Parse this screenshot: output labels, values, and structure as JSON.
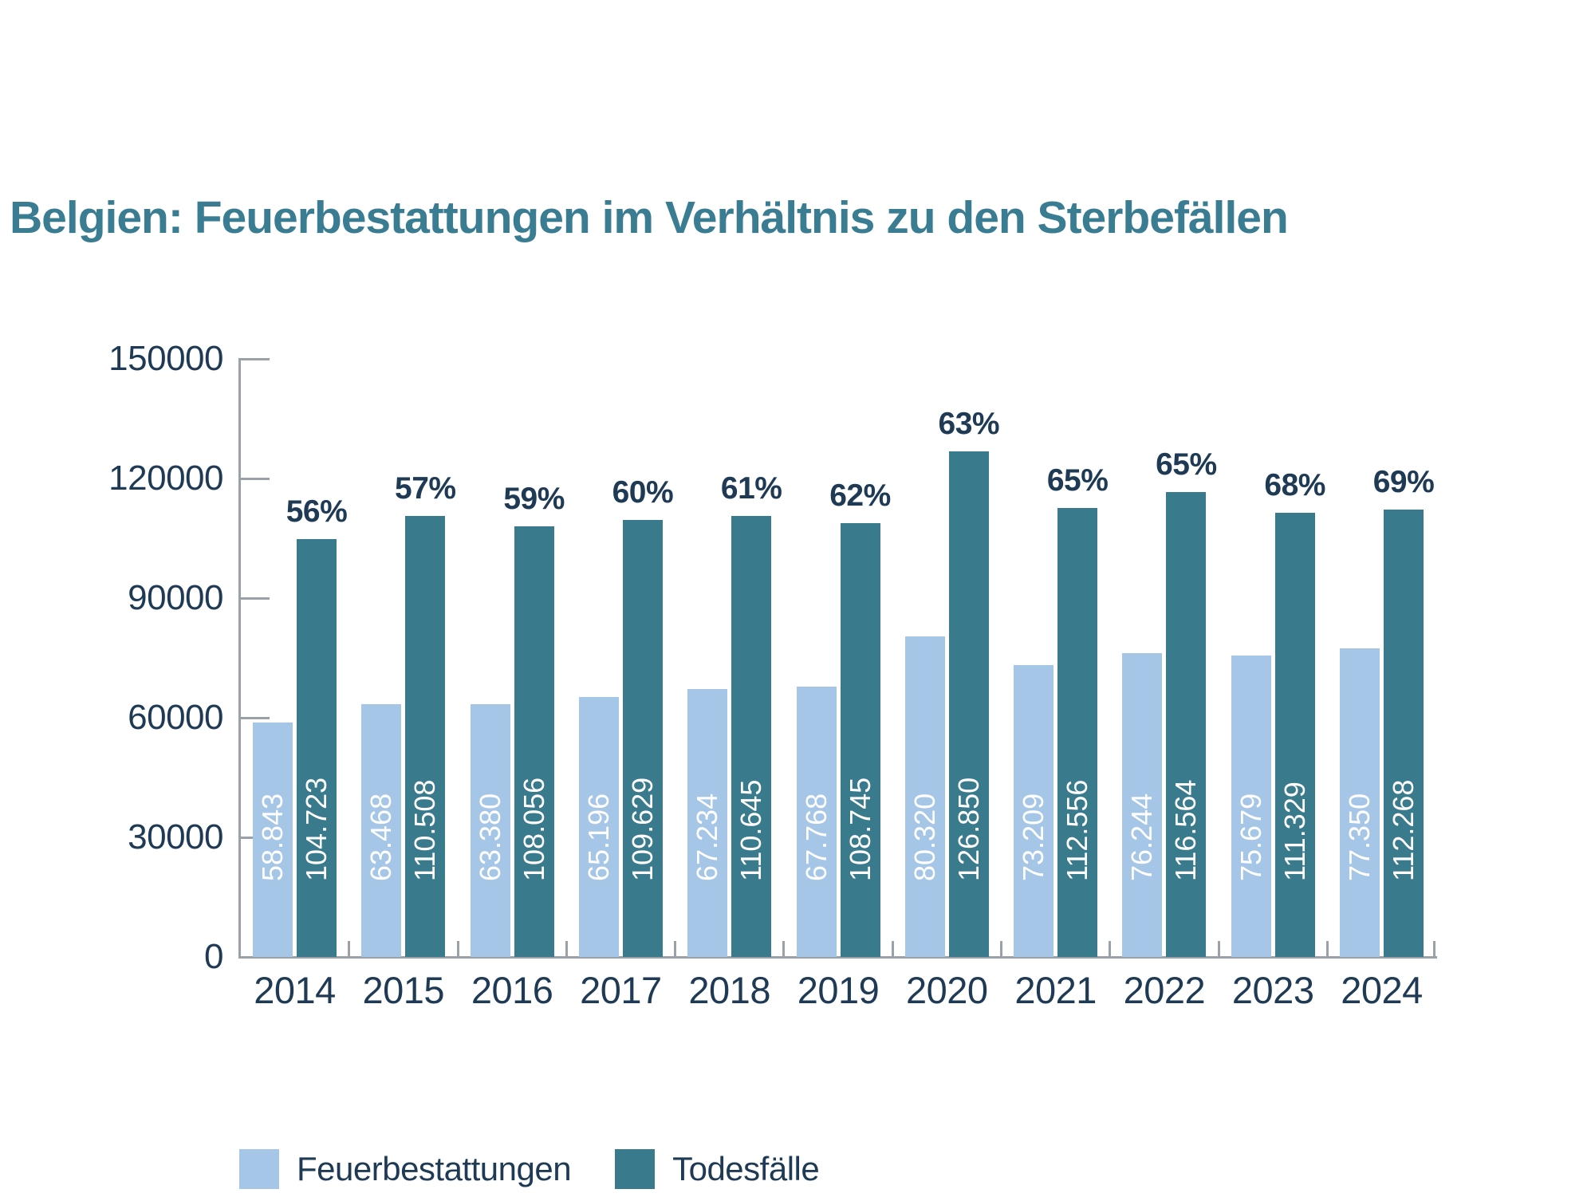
{
  "title": "Belgien: Feuerbestattungen im Verhältnis zu den Sterbefällen",
  "colors": {
    "title": "#3a7d93",
    "text": "#1e3a54",
    "axis": "#9aa1a8",
    "bar_light": "#a5c6e7",
    "bar_dark": "#3a7a8d",
    "value_label": "#ffffff"
  },
  "chart_data": {
    "type": "bar",
    "title": "Belgien: Feuerbestattungen im Verhältnis zu den Sterbefällen",
    "categories": [
      "2014",
      "2015",
      "2016",
      "2017",
      "2018",
      "2019",
      "2020",
      "2021",
      "2022",
      "2023",
      "2024"
    ],
    "series": [
      {
        "name": "Feuerbestattungen",
        "color": "#a5c6e7",
        "values": [
          58843,
          63468,
          63380,
          65196,
          67234,
          67768,
          80320,
          73209,
          76244,
          75679,
          77350
        ],
        "value_labels": [
          "58.843",
          "63.468",
          "63.380",
          "65.196",
          "67.234",
          "67.768",
          "80.320",
          "73.209",
          "76.244",
          "75.679",
          "77.350"
        ]
      },
      {
        "name": "Todesfälle",
        "color": "#3a7a8d",
        "values": [
          104723,
          110508,
          108056,
          109629,
          110645,
          108745,
          126850,
          112556,
          116564,
          111329,
          112268
        ],
        "value_labels": [
          "104.723",
          "110.508",
          "108.056",
          "109.629",
          "110.645",
          "108.745",
          "126.850",
          "112.556",
          "116.564",
          "111.329",
          "112.268"
        ]
      }
    ],
    "percent_labels": [
      "56%",
      "57%",
      "59%",
      "60%",
      "61%",
      "62%",
      "63%",
      "65%",
      "65%",
      "68%",
      "69%"
    ],
    "xlabel": "",
    "ylabel": "",
    "ylim": [
      0,
      150000
    ],
    "yticks": [
      0,
      30000,
      60000,
      90000,
      120000,
      150000
    ],
    "grid": false,
    "legend_position": "bottom"
  },
  "legend": {
    "items": [
      {
        "label": "Feuerbestattungen",
        "color": "#a5c6e7"
      },
      {
        "label": "Todesfälle",
        "color": "#3a7a8d"
      }
    ]
  }
}
